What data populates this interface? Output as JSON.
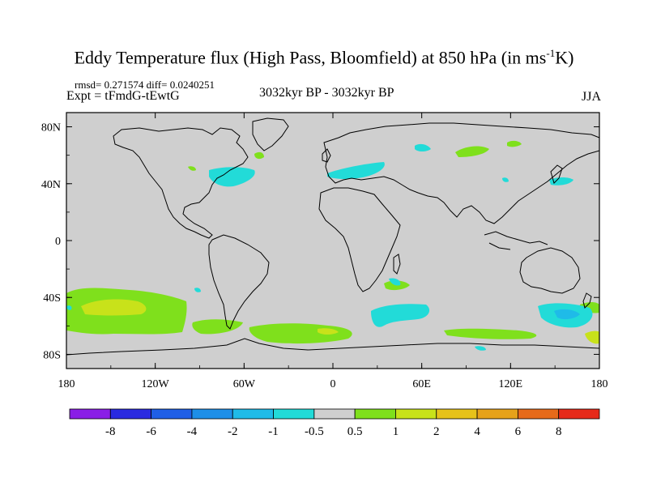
{
  "title": "Eddy Temperature flux (High Pass, Bloomfield) at 850 hPa (in ms",
  "title_sup": "-1",
  "title_end": "K)",
  "stats": "rmsd= 0.271574  diff= 0.0240251",
  "experiment": "Expt = tFmdG-tEwtG",
  "period": "3032kyr BP - 3032kyr BP",
  "season": "JJA",
  "map": {
    "projection": "cylindrical-equidistant",
    "lon_range": [
      -180,
      180
    ],
    "lat_range": [
      -90,
      90
    ],
    "x_ticks": [
      "180",
      "120W",
      "60W",
      "0",
      "60E",
      "120E",
      "180"
    ],
    "y_ticks": [
      "80N",
      "40N",
      "0",
      "40S",
      "80S"
    ],
    "background_color": "#cfcfcf",
    "coastline_color": "#000000"
  },
  "colorbar": {
    "labels": [
      "-8",
      "-6",
      "-4",
      "-2",
      "-1",
      "-0.5",
      "0.5",
      "1",
      "2",
      "4",
      "6",
      "8"
    ],
    "colors": [
      "#8a1ee6",
      "#2a2ae0",
      "#1f5fe6",
      "#1e8fe8",
      "#1fbbe8",
      "#22dbd8",
      "#cfcfcf",
      "#7fe01c",
      "#c8e21a",
      "#e6c21a",
      "#e6a21a",
      "#e66a1a",
      "#e62a1a"
    ]
  },
  "anomaly_colors": {
    "pos_low": "#7fe01c",
    "pos_mid": "#c8e21a",
    "neg_low": "#22dbd8",
    "neg_mid": "#1fbbe8"
  }
}
